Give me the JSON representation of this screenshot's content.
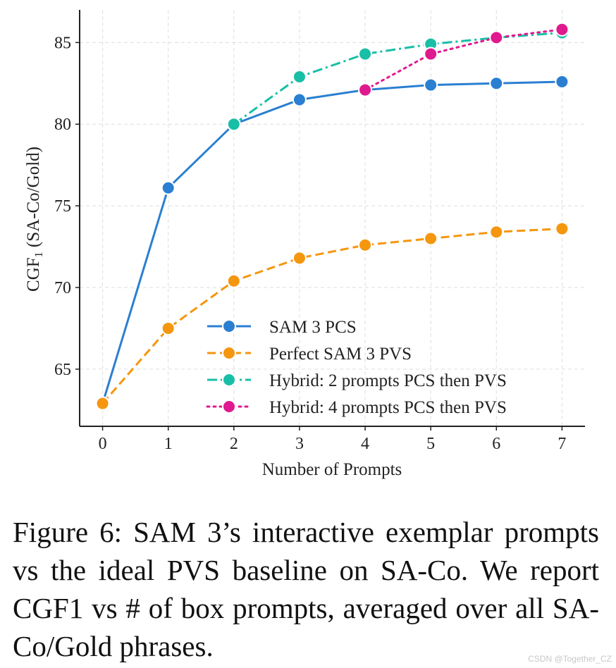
{
  "chart_data": {
    "type": "line",
    "xlabel": "Number of Prompts",
    "ylabel": "CGF1 (SA-Co/Gold)",
    "xlim": [
      -0.35,
      7.35
    ],
    "ylim": [
      61.5,
      87
    ],
    "x_ticks": [
      "0",
      "1",
      "2",
      "3",
      "4",
      "5",
      "6",
      "7"
    ],
    "y_ticks": [
      "65",
      "70",
      "75",
      "80",
      "85"
    ],
    "grid": true,
    "legend_position": "bottom-right",
    "series": [
      {
        "name": "SAM 3 PCS",
        "color": "#2a7fd1",
        "style": "solid",
        "x": [
          0,
          1,
          2,
          3,
          4,
          5,
          6,
          7
        ],
        "values": [
          62.9,
          76.1,
          80.0,
          81.5,
          82.1,
          82.4,
          82.5,
          82.6
        ]
      },
      {
        "name": "Perfect SAM 3 PVS",
        "color": "#f5960f",
        "style": "dashed",
        "x": [
          0,
          1,
          2,
          3,
          4,
          5,
          6,
          7
        ],
        "values": [
          62.9,
          67.5,
          70.4,
          71.8,
          72.6,
          73.0,
          73.4,
          73.6
        ]
      },
      {
        "name": "Hybrid: 2 prompts PCS then PVS",
        "color": "#18bfa6",
        "style": "dashdot",
        "x": [
          2,
          3,
          4,
          5,
          6,
          7
        ],
        "values": [
          80.0,
          82.9,
          84.3,
          84.9,
          85.3,
          85.6
        ]
      },
      {
        "name": "Hybrid: 4 prompts PCS then PVS",
        "color": "#e0198f",
        "style": "dotted",
        "x": [
          4,
          5,
          6,
          7
        ],
        "values": [
          82.1,
          84.3,
          85.3,
          85.8
        ]
      }
    ]
  },
  "caption": "Figure 6: SAM 3’s interactive exemplar prompts vs the ideal PVS baseline on SA-Co. We report CGF1 vs # of box prompts, averaged over all SA-Co/Gold phrases.",
  "watermark": "CSDN @Together_CZ"
}
